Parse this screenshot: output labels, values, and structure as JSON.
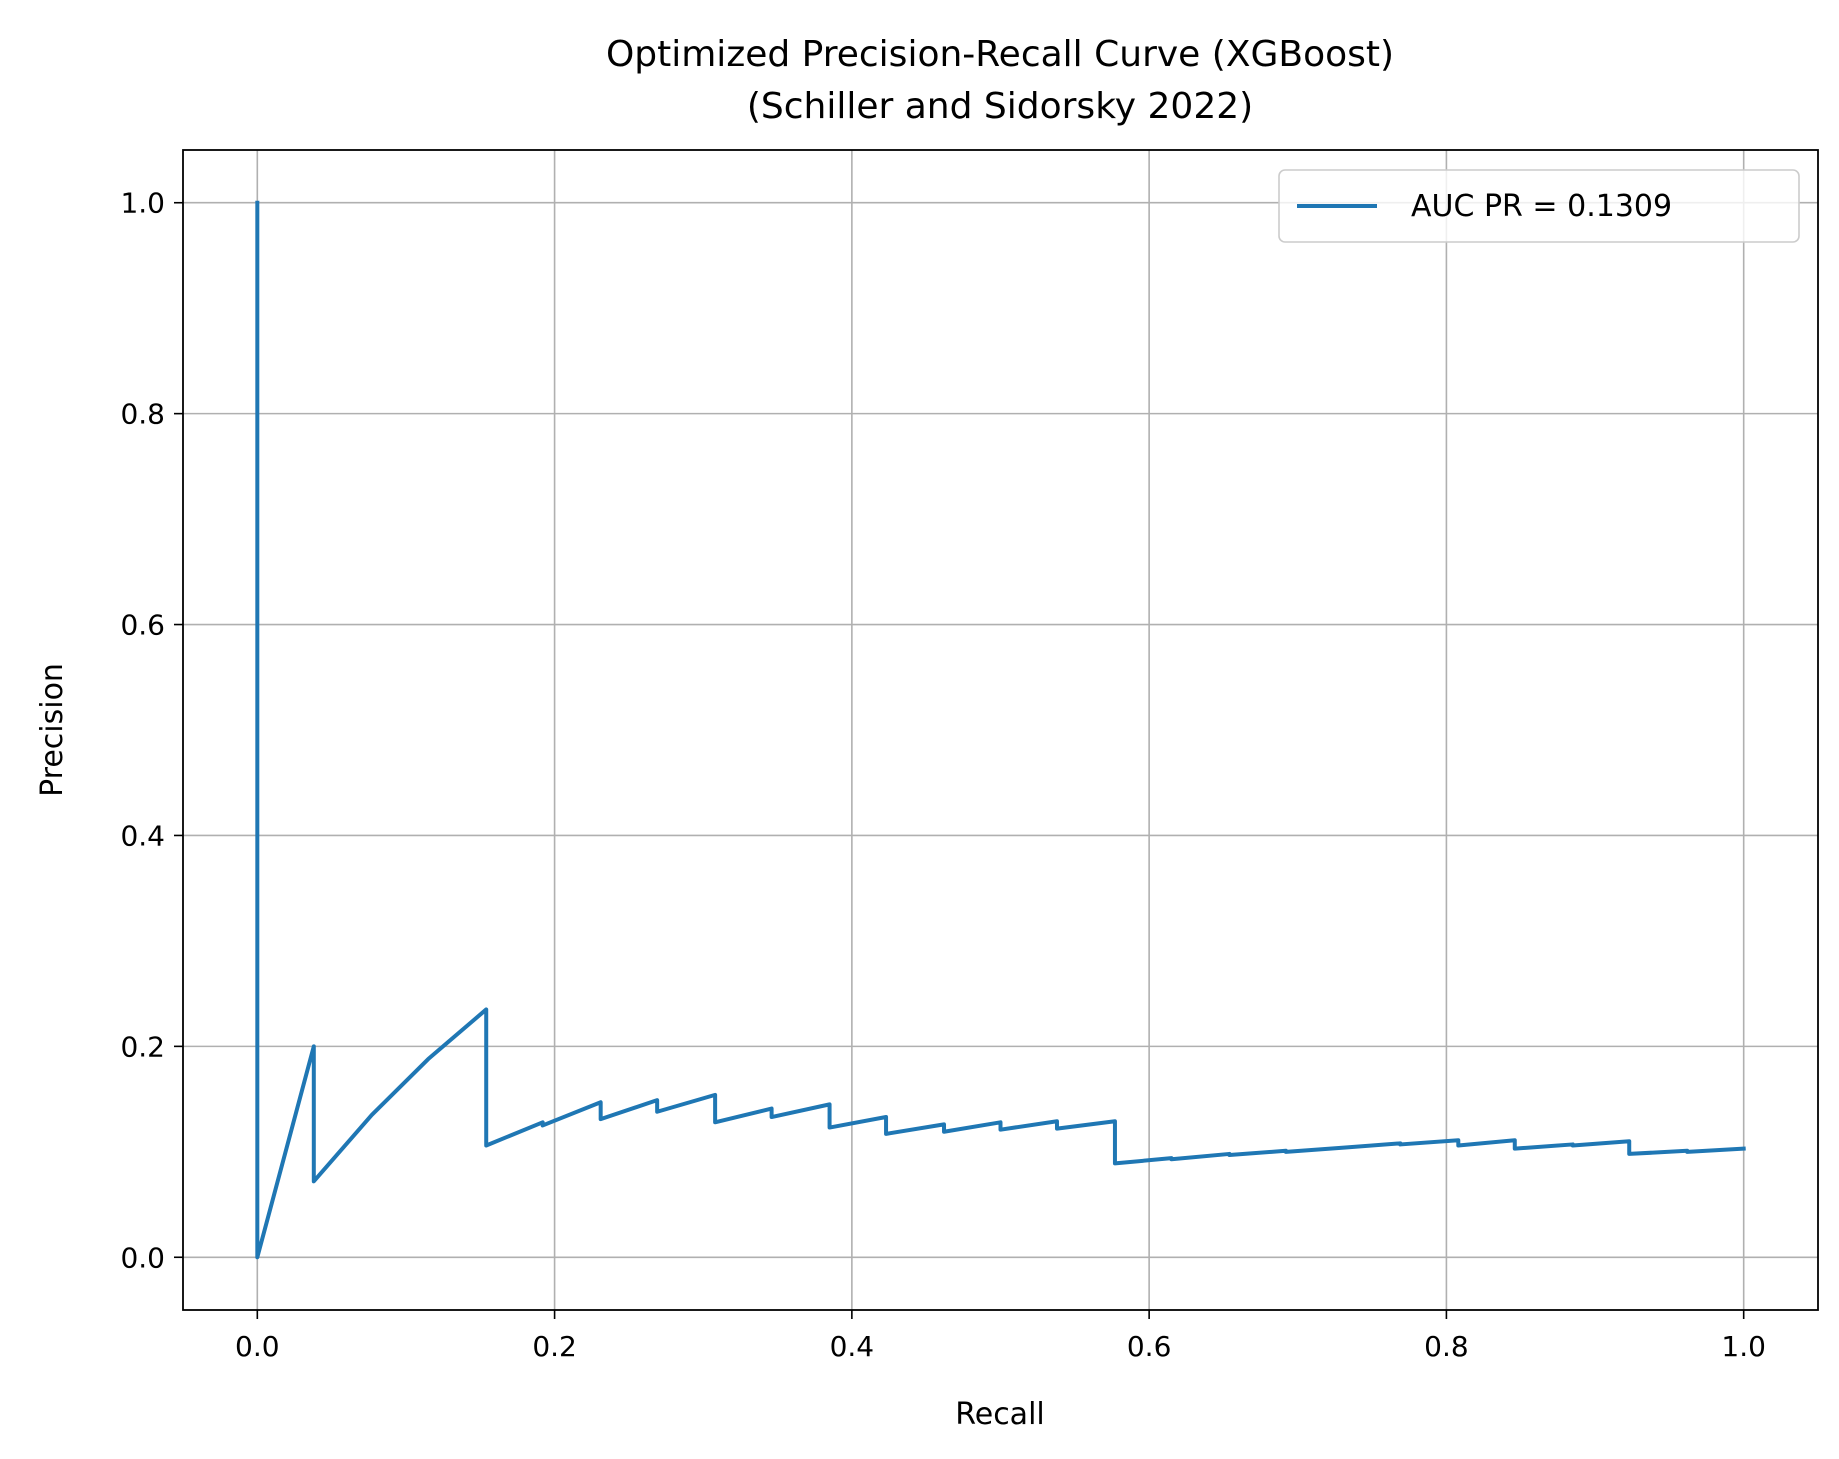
{
  "chart_data": {
    "type": "line",
    "title": "Optimized Precision-Recall Curve (XGBoost)",
    "subtitle": "(Schiller and Sidorsky 2022)",
    "xlabel": "Recall",
    "ylabel": "Precision",
    "xlim": [
      -0.05,
      1.05
    ],
    "ylim": [
      -0.05,
      1.05
    ],
    "xticks": [
      "0.0",
      "0.2",
      "0.4",
      "0.6",
      "0.8",
      "1.0"
    ],
    "yticks": [
      "0.0",
      "0.2",
      "0.4",
      "0.6",
      "0.8",
      "1.0"
    ],
    "grid": true,
    "legend_position": "top-right",
    "series": [
      {
        "name": "AUC PR = 0.1309",
        "color": "#1f77b4",
        "x": [
          0.0,
          0.0,
          0.038,
          0.038,
          0.077,
          0.115,
          0.154,
          0.154,
          0.192,
          0.192,
          0.231,
          0.231,
          0.269,
          0.269,
          0.308,
          0.308,
          0.346,
          0.346,
          0.385,
          0.385,
          0.423,
          0.423,
          0.462,
          0.462,
          0.5,
          0.5,
          0.538,
          0.538,
          0.577,
          0.577,
          0.615,
          0.615,
          0.654,
          0.654,
          0.692,
          0.692,
          0.731,
          0.769,
          0.769,
          0.808,
          0.808,
          0.846,
          0.846,
          0.885,
          0.885,
          0.923,
          0.923,
          0.962,
          0.962,
          1.0
        ],
        "y": [
          1.0,
          0.0,
          0.2,
          0.072,
          0.135,
          0.188,
          0.235,
          0.106,
          0.128,
          0.125,
          0.147,
          0.131,
          0.149,
          0.138,
          0.154,
          0.128,
          0.141,
          0.133,
          0.145,
          0.123,
          0.133,
          0.117,
          0.126,
          0.119,
          0.128,
          0.121,
          0.129,
          0.122,
          0.129,
          0.089,
          0.094,
          0.093,
          0.098,
          0.097,
          0.101,
          0.1,
          0.104,
          0.108,
          0.107,
          0.111,
          0.106,
          0.111,
          0.103,
          0.107,
          0.106,
          0.11,
          0.098,
          0.101,
          0.1,
          0.103
        ]
      }
    ]
  }
}
